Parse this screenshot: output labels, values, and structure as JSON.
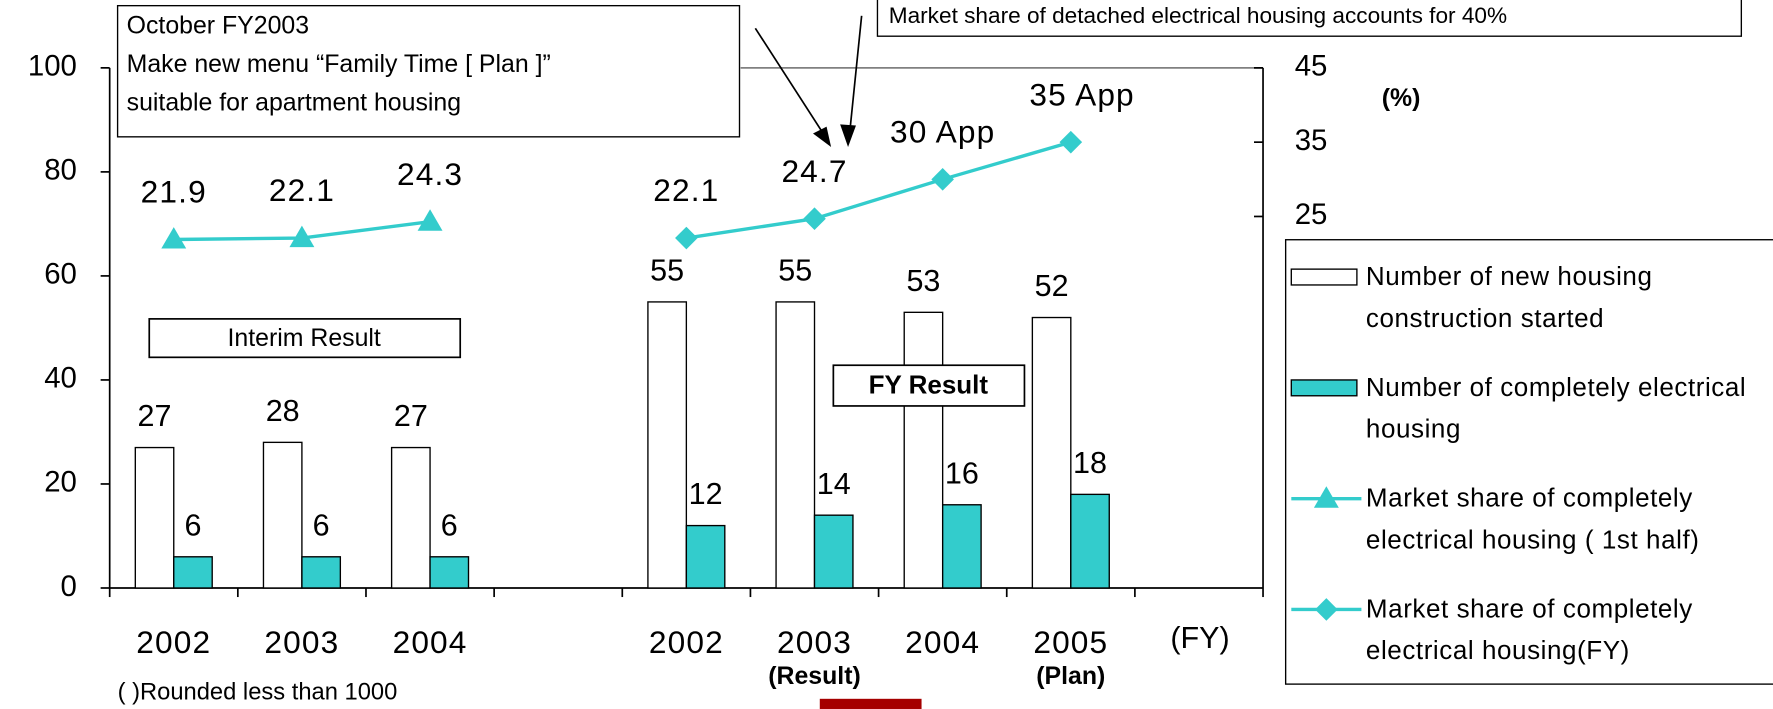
{
  "chart_data": {
    "type": "bar",
    "categories": [
      "2002",
      "2003",
      "2004",
      null,
      "2002",
      "2003",
      "2004",
      "2005",
      null
    ],
    "x_sublabels": [
      null,
      null,
      null,
      null,
      null,
      "(Result)",
      null,
      "(Plan)",
      null
    ],
    "x_unit": "(FY)",
    "y2_unit": "(%)",
    "series": [
      {
        "name": "Number of new housing construction started",
        "type": "bar",
        "color": "#ffffff",
        "values": [
          27,
          28,
          27,
          null,
          55,
          55,
          53,
          52,
          null
        ]
      },
      {
        "name": "Number of completely electrical housing",
        "type": "bar",
        "color": "#33cccc",
        "values": [
          6,
          6,
          6,
          null,
          12,
          14,
          16,
          18,
          null
        ]
      },
      {
        "name": "Market share of completely electrical housing ( 1st half)",
        "type": "line",
        "marker": "triangle",
        "axis": "y2",
        "color": "#33cccc",
        "values": [
          21.9,
          22.1,
          24.3,
          null,
          null,
          null,
          null,
          null,
          null
        ]
      },
      {
        "name": "Market share of completely electrical housing(FY)",
        "type": "line",
        "marker": "diamond",
        "axis": "y2",
        "color": "#33cccc",
        "values": [
          null,
          null,
          null,
          null,
          22.1,
          24.7,
          30,
          35,
          null
        ],
        "value_labels": [
          null,
          null,
          null,
          null,
          "22.1",
          "24.7",
          "30 App",
          "35 App",
          null
        ]
      }
    ],
    "ylim": [
      0,
      100
    ],
    "yticks": [
      0,
      20,
      40,
      60,
      80,
      100
    ],
    "y2lim": [
      -25,
      45
    ],
    "y2ticks": [
      25,
      35,
      45
    ],
    "annotations": {
      "menu": [
        "October FY2003",
        "  Make new menu “Family Time [ Plan    ]”",
        "suitable for apartment housing"
      ],
      "share": "Market share of detached electrical housing accounts for 40%",
      "interim": "Interim Result",
      "fy": "FY Result",
      "note": "(    )Rounded less than 1000"
    }
  }
}
